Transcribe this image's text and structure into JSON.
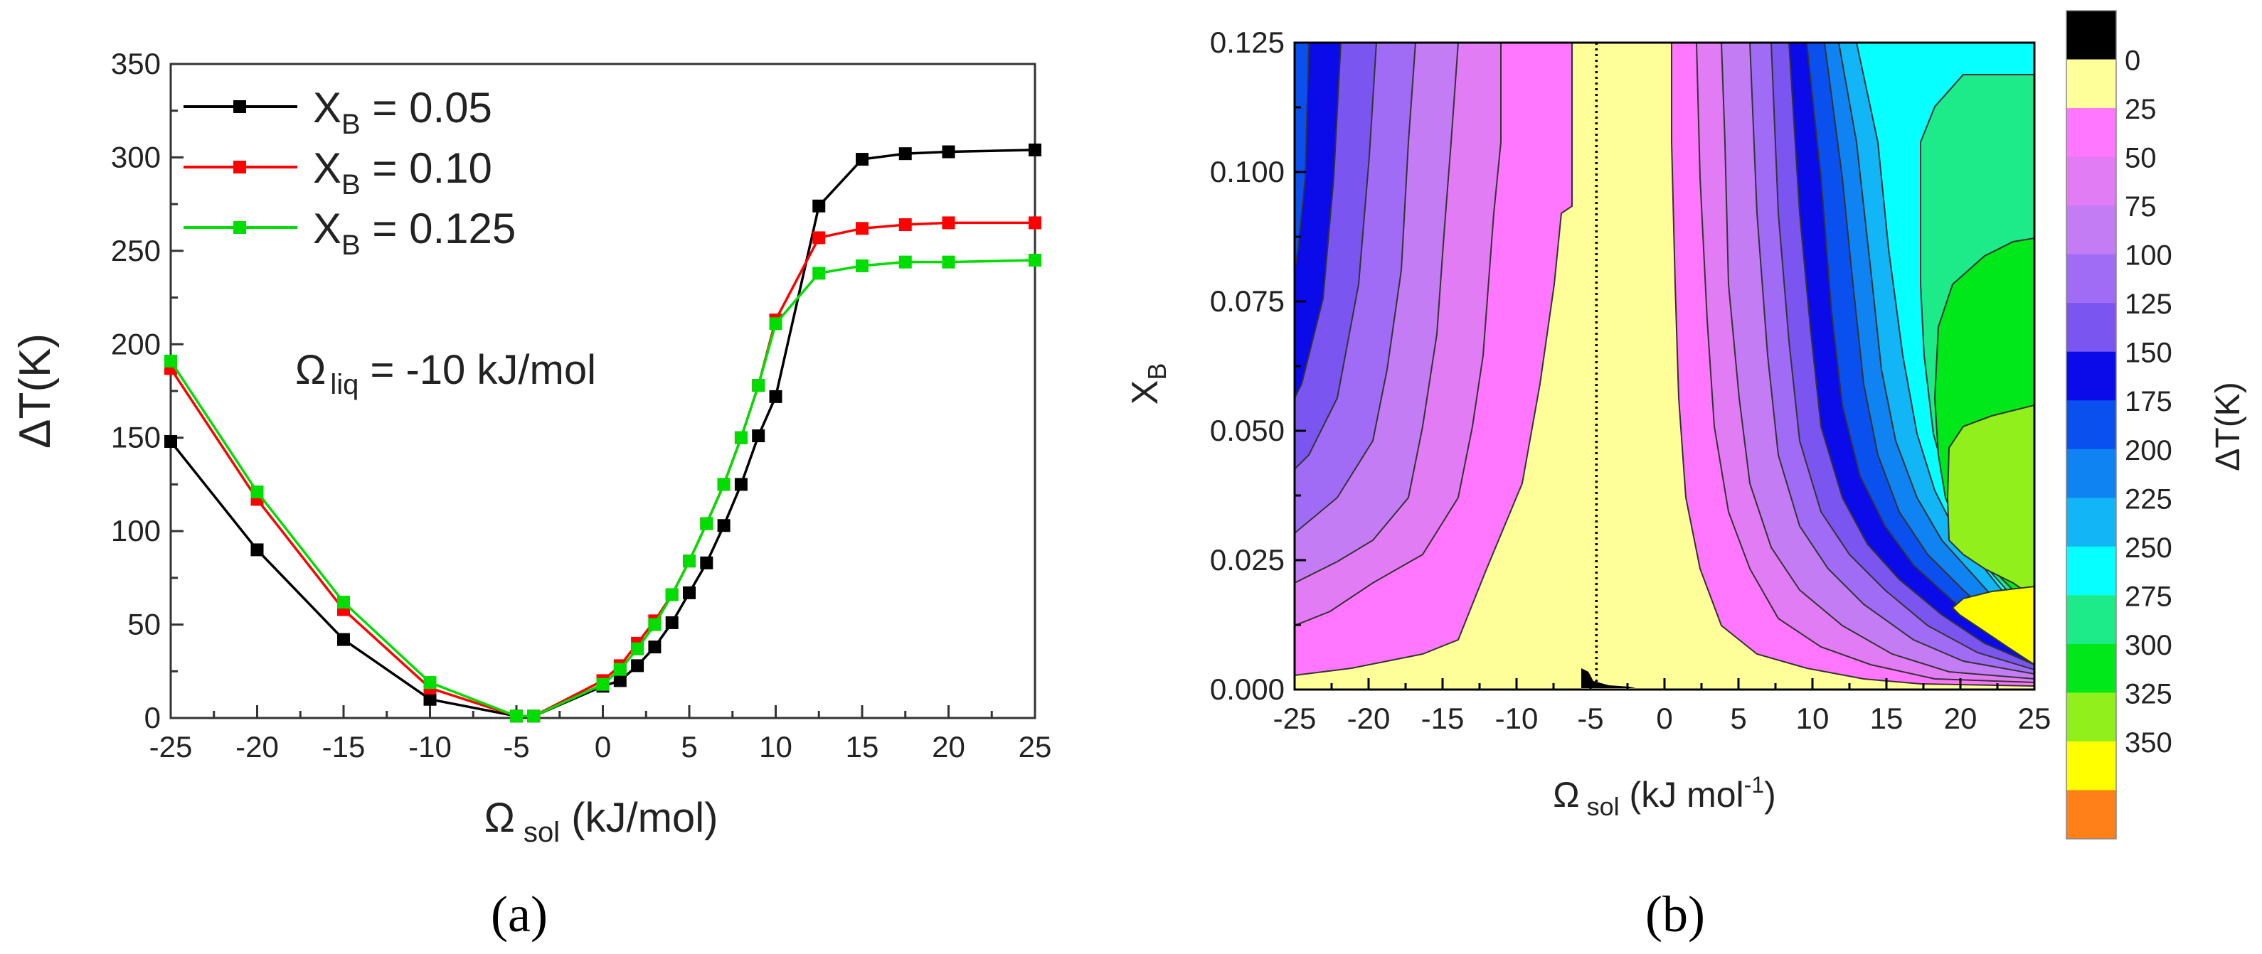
{
  "chart_data": [
    {
      "panel": "a",
      "type": "line",
      "caption": "(a)",
      "xlabel": {
        "symbol": "Ω",
        "sub": "sol",
        "unit": " (kJ/mol)"
      },
      "ylabel": "ΔT(K)",
      "xlim": [
        -25,
        25
      ],
      "ylim": [
        0,
        350
      ],
      "xticks": [
        -25,
        -20,
        -15,
        -10,
        -5,
        0,
        5,
        10,
        15,
        20,
        25
      ],
      "yticks": [
        0,
        50,
        100,
        150,
        200,
        250,
        300,
        350
      ],
      "x": [
        -25,
        -20,
        -15,
        -10,
        -5,
        -4,
        0,
        1,
        2,
        3,
        4,
        5,
        6,
        7,
        8,
        9,
        10,
        12.5,
        15,
        17.5,
        20,
        25
      ],
      "series": [
        {
          "name": "X_B = 0.05",
          "color": "#000000",
          "values": [
            148,
            90,
            42,
            10,
            1,
            1,
            17,
            20,
            28,
            38,
            51,
            67,
            83,
            103,
            125,
            151,
            172,
            274,
            299,
            302,
            303,
            304
          ]
        },
        {
          "name": "X_B = 0.10",
          "color": "#ff0000",
          "values": [
            187,
            117,
            58,
            16,
            1,
            1,
            20,
            28,
            40,
            52,
            66,
            84,
            104,
            125,
            150,
            178,
            213,
            257,
            262,
            264,
            265,
            265
          ]
        },
        {
          "name": "X_B = 0.125",
          "color": "#00dd00",
          "values": [
            191,
            121,
            62,
            19,
            1,
            1,
            18,
            26,
            37,
            50,
            66,
            84,
            104,
            125,
            150,
            178,
            211,
            238,
            242,
            244,
            244,
            245
          ]
        }
      ],
      "legend": [
        {
          "x": "X",
          "sub": "B",
          "rest": " = 0.05"
        },
        {
          "x": "X",
          "sub": "B",
          "rest": " = 0.10"
        },
        {
          "x": "X",
          "sub": "B",
          "rest": " = 0.125"
        }
      ],
      "annotation": {
        "symbol": "Ω",
        "sub": "liq",
        "rest": " = -10 kJ/mol"
      }
    },
    {
      "panel": "b",
      "type": "heatmap",
      "caption": "(b)",
      "xlabel": {
        "symbol": "Ω",
        "sub": "sol",
        "unit": " (kJ mol",
        "sup": "-1",
        "close": ")"
      },
      "ylabel": {
        "x": "X",
        "sub": "B"
      },
      "xlim": [
        -25,
        25
      ],
      "ylim": [
        0,
        0.125
      ],
      "xticks": [
        -25,
        -20,
        -15,
        -10,
        -5,
        0,
        5,
        10,
        15,
        20,
        25
      ],
      "yticks": [
        "0.000",
        "0.025",
        "0.050",
        "0.075",
        "0.100",
        "0.125"
      ],
      "reference_line_x": -4.6,
      "colorbar": {
        "label": "ΔT(K)",
        "levels": [
          "0",
          "25",
          "50",
          "75",
          "100",
          "125",
          "150",
          "175",
          "200",
          "225",
          "250",
          "275",
          "300",
          "325",
          "350"
        ],
        "colors": [
          "#000000",
          "#ffff99",
          "#ff77ff",
          "#e27cf5",
          "#c47cf5",
          "#a16cf5",
          "#7b55ef",
          "#0b0bea",
          "#0a50ef",
          "#0f83f2",
          "#12b6f6",
          "#06ffff",
          "#1deb8a",
          "#00e81a",
          "#91ef1c",
          "#ffff00",
          "#ff8018"
        ]
      }
    }
  ]
}
